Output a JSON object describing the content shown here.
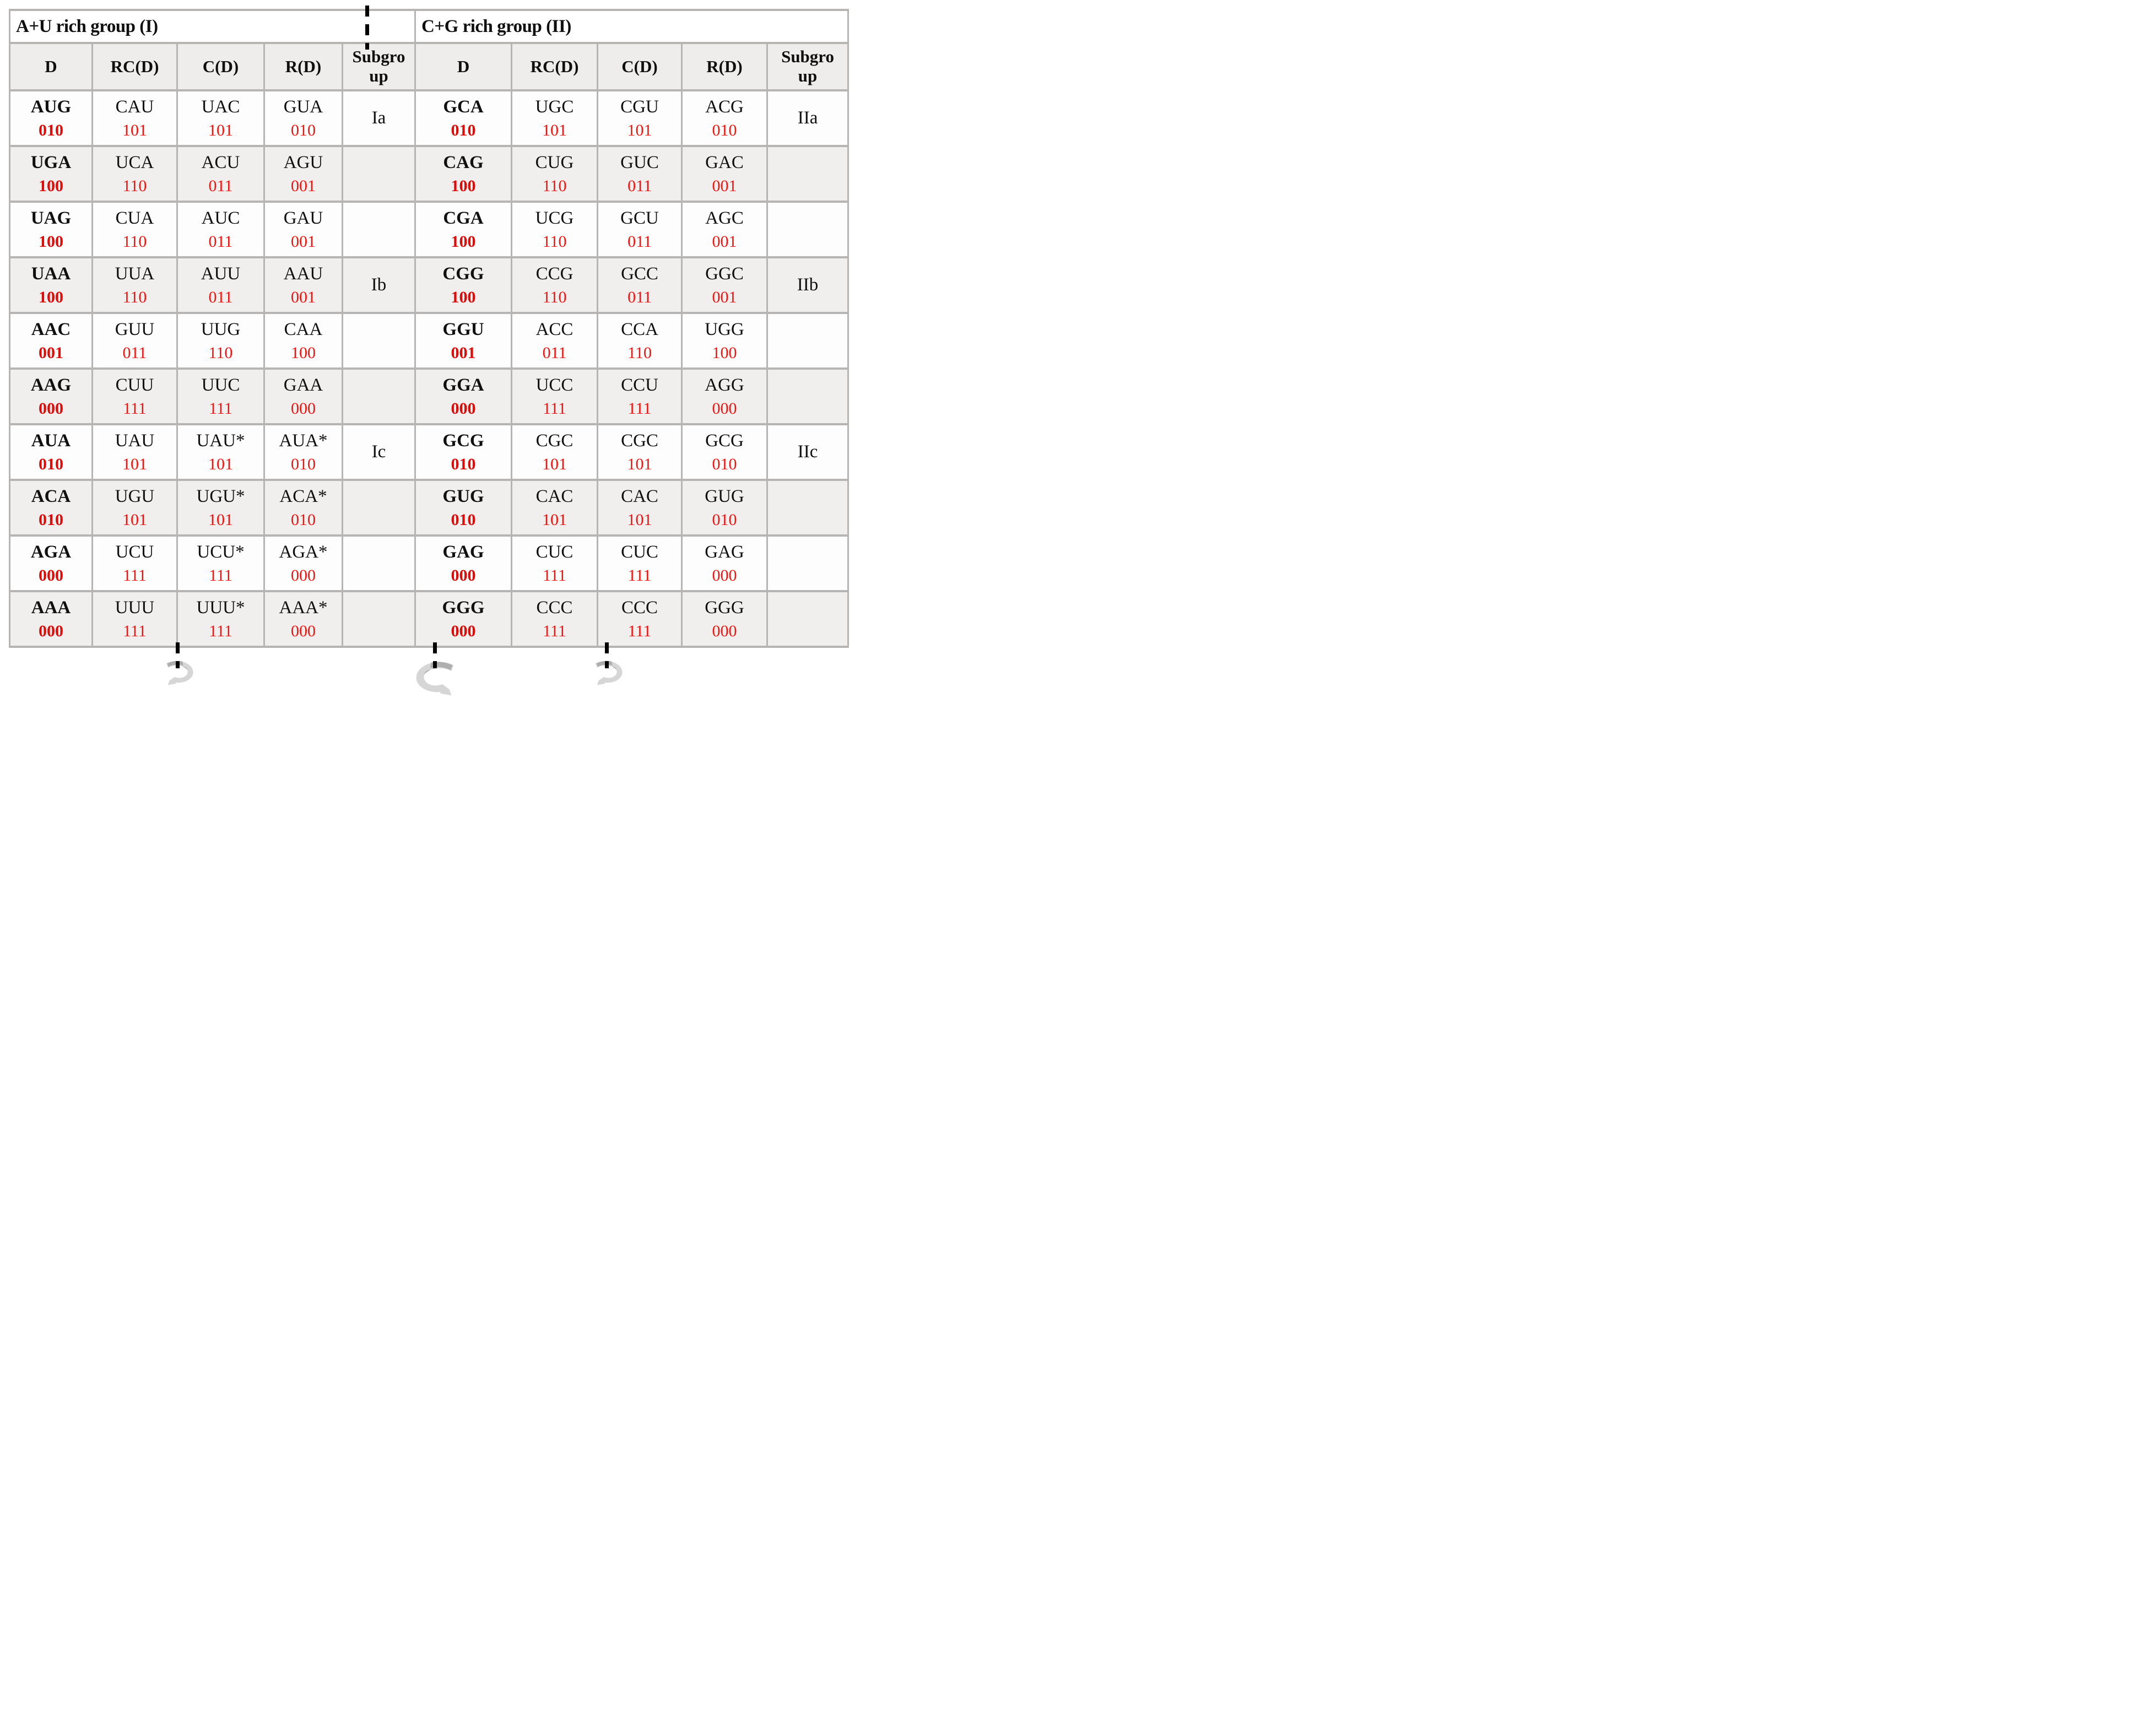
{
  "figure": {
    "groups": [
      {
        "title": "A+U rich group (I)"
      },
      {
        "title": "C+G rich group (II)"
      }
    ],
    "column_headers": [
      "D",
      "RC(D)",
      "C(D)",
      "R(D)",
      "Subgroup"
    ],
    "rows": [
      {
        "left": {
          "cells": [
            [
              "AUG",
              "010"
            ],
            [
              "CAU",
              "101"
            ],
            [
              "UAC",
              "101"
            ],
            [
              "GUA",
              "010"
            ]
          ],
          "subgroup": "Ia"
        },
        "right": {
          "cells": [
            [
              "GCA",
              "010"
            ],
            [
              "UGC",
              "101"
            ],
            [
              "CGU",
              "101"
            ],
            [
              "ACG",
              "010"
            ]
          ],
          "subgroup": "IIa"
        }
      },
      {
        "left": {
          "cells": [
            [
              "UGA",
              "100"
            ],
            [
              "UCA",
              "110"
            ],
            [
              "ACU",
              "011"
            ],
            [
              "AGU",
              "001"
            ]
          ],
          "subgroup": ""
        },
        "right": {
          "cells": [
            [
              "CAG",
              "100"
            ],
            [
              "CUG",
              "110"
            ],
            [
              "GUC",
              "011"
            ],
            [
              "GAC",
              "001"
            ]
          ],
          "subgroup": ""
        }
      },
      {
        "left": {
          "cells": [
            [
              "UAG",
              "100"
            ],
            [
              "CUA",
              "110"
            ],
            [
              "AUC",
              "011"
            ],
            [
              "GAU",
              "001"
            ]
          ],
          "subgroup": ""
        },
        "right": {
          "cells": [
            [
              "CGA",
              "100"
            ],
            [
              "UCG",
              "110"
            ],
            [
              "GCU",
              "011"
            ],
            [
              "AGC",
              "001"
            ]
          ],
          "subgroup": ""
        }
      },
      {
        "left": {
          "cells": [
            [
              "UAA",
              "100"
            ],
            [
              "UUA",
              "110"
            ],
            [
              "AUU",
              "011"
            ],
            [
              "AAU",
              "001"
            ]
          ],
          "subgroup": "Ib"
        },
        "right": {
          "cells": [
            [
              "CGG",
              "100"
            ],
            [
              "CCG",
              "110"
            ],
            [
              "GCC",
              "011"
            ],
            [
              "GGC",
              "001"
            ]
          ],
          "subgroup": "IIb"
        }
      },
      {
        "left": {
          "cells": [
            [
              "AAC",
              "001"
            ],
            [
              "GUU",
              "011"
            ],
            [
              "UUG",
              "110"
            ],
            [
              "CAA",
              "100"
            ]
          ],
          "subgroup": ""
        },
        "right": {
          "cells": [
            [
              "GGU",
              "001"
            ],
            [
              "ACC",
              "011"
            ],
            [
              "CCA",
              "110"
            ],
            [
              "UGG",
              "100"
            ]
          ],
          "subgroup": ""
        }
      },
      {
        "left": {
          "cells": [
            [
              "AAG",
              "000"
            ],
            [
              "CUU",
              "111"
            ],
            [
              "UUC",
              "111"
            ],
            [
              "GAA",
              "000"
            ]
          ],
          "subgroup": ""
        },
        "right": {
          "cells": [
            [
              "GGA",
              "000"
            ],
            [
              "UCC",
              "111"
            ],
            [
              "CCU",
              "111"
            ],
            [
              "AGG",
              "000"
            ]
          ],
          "subgroup": ""
        }
      },
      {
        "left": {
          "cells": [
            [
              "AUA",
              "010"
            ],
            [
              "UAU",
              "101"
            ],
            [
              "UAU*",
              "101"
            ],
            [
              "AUA*",
              "010"
            ]
          ],
          "subgroup": "Ic"
        },
        "right": {
          "cells": [
            [
              "GCG",
              "010"
            ],
            [
              "CGC",
              "101"
            ],
            [
              "CGC",
              "101"
            ],
            [
              "GCG",
              "010"
            ]
          ],
          "subgroup": "IIc"
        }
      },
      {
        "left": {
          "cells": [
            [
              "ACA",
              "010"
            ],
            [
              "UGU",
              "101"
            ],
            [
              "UGU*",
              "101"
            ],
            [
              "ACA*",
              "010"
            ]
          ],
          "subgroup": ""
        },
        "right": {
          "cells": [
            [
              "GUG",
              "010"
            ],
            [
              "CAC",
              "101"
            ],
            [
              "CAC",
              "101"
            ],
            [
              "GUG",
              "010"
            ]
          ],
          "subgroup": ""
        }
      },
      {
        "left": {
          "cells": [
            [
              "AGA",
              "000"
            ],
            [
              "UCU",
              "111"
            ],
            [
              "UCU*",
              "111"
            ],
            [
              "AGA*",
              "000"
            ]
          ],
          "subgroup": ""
        },
        "right": {
          "cells": [
            [
              "GAG",
              "000"
            ],
            [
              "CUC",
              "111"
            ],
            [
              "CUC",
              "111"
            ],
            [
              "GAG",
              "000"
            ]
          ],
          "subgroup": ""
        }
      },
      {
        "left": {
          "cells": [
            [
              "AAA",
              "000"
            ],
            [
              "UUU",
              "111"
            ],
            [
              "UUU*",
              "111"
            ],
            [
              "AAA*",
              "000"
            ]
          ],
          "subgroup": ""
        },
        "right": {
          "cells": [
            [
              "GGG",
              "000"
            ],
            [
              "CCC",
              "111"
            ],
            [
              "CCC",
              "111"
            ],
            [
              "GGG",
              "000"
            ]
          ],
          "subgroup": ""
        }
      }
    ]
  },
  "annotations": {
    "top_dashed_lines": 1,
    "bottom_dashed_lines": 3,
    "rotation_arrow_icons": 3
  },
  "colors": {
    "binary_code_red": "#f01410",
    "binary_code_red_bold": "#de0b08",
    "text_black": "#101010",
    "row_alt_background": "#f1eeee",
    "header_background": "#efecec",
    "grid_border": "#b7b4b4",
    "arrow_gray_light": "#d6d6d6",
    "arrow_gray_dark": "#aeaeae"
  }
}
